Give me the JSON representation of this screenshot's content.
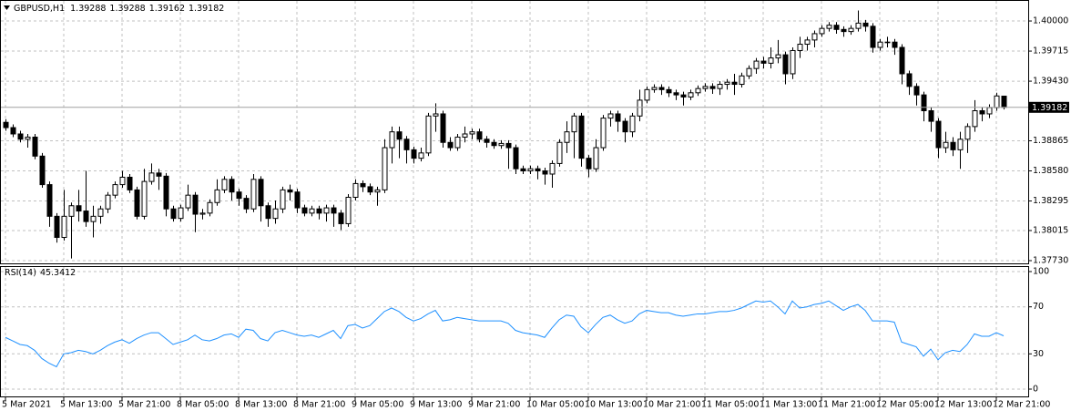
{
  "chart_data": [
    {
      "type": "candlestick",
      "title": "GBPUSD,H1",
      "bull_color": "#ffffff",
      "bear_color": "#000000",
      "edge_color": "#000000",
      "grid": true,
      "ylim": [
        1.37704,
        1.40173
      ],
      "yticks": [
        {
          "value": 1.4,
          "label": "1.40000"
        },
        1.39715,
        {
          "value": 1.3943,
          "label": "1.39430"
        },
        1.38865,
        {
          "value": 1.3858,
          "label": "1.38580"
        },
        1.38295,
        1.38015,
        {
          "value": 1.3773,
          "label": "1.37730"
        }
      ],
      "open": [
        1.3904,
        1.3899,
        1.3893,
        1.3888,
        1.389,
        1.3872,
        1.3845,
        1.3815,
        1.3795,
        1.3815,
        1.3825,
        1.382,
        1.381,
        1.3815,
        1.3822,
        1.3835,
        1.3845,
        1.3852,
        1.384,
        1.3815,
        1.3848,
        1.3856,
        1.3853,
        1.3822,
        1.3813,
        1.3823,
        1.3835,
        1.3817,
        1.3818,
        1.3828,
        1.384,
        1.385,
        1.3838,
        1.3832,
        1.3822,
        1.385,
        1.3825,
        1.3813,
        1.3822,
        1.384,
        1.3838,
        1.3823,
        1.3818,
        1.3822,
        1.3818,
        1.3823,
        1.3818,
        1.3808,
        1.3833,
        1.3846,
        1.3843,
        1.3838,
        1.384,
        1.388,
        1.3895,
        1.3888,
        1.3878,
        1.387,
        1.3875,
        1.391,
        1.3912,
        1.3885,
        1.388,
        1.389,
        1.3893,
        1.3895,
        1.3888,
        1.3885,
        1.3882,
        1.3884,
        1.388,
        1.386,
        1.3858,
        1.386,
        1.3858,
        1.3855,
        1.3865,
        1.3885,
        1.3895,
        1.391,
        1.387,
        1.386,
        1.388,
        1.3908,
        1.3912,
        1.3905,
        1.3895,
        1.391,
        1.3925,
        1.3935,
        1.3937,
        1.3935,
        1.3932,
        1.393,
        1.3928,
        1.3932,
        1.3936,
        1.3938,
        1.3936,
        1.394,
        1.3942,
        1.394,
        1.3948,
        1.3955,
        1.3962,
        1.396,
        1.3965,
        1.3968,
        1.395,
        1.3972,
        1.3978,
        1.3982,
        1.3988,
        1.3993,
        1.3996,
        1.3992,
        1.399,
        1.3993,
        1.3998,
        1.3995,
        1.3975,
        1.398,
        1.398,
        1.3975,
        1.395,
        1.3938,
        1.393,
        1.3915,
        1.3905,
        1.388,
        1.3885,
        1.3878,
        1.3888,
        1.39,
        1.3915,
        1.3912,
        1.3918,
        1.39288
      ],
      "high": [
        1.3907,
        1.3902,
        1.3896,
        1.3893,
        1.3893,
        1.3875,
        1.3848,
        1.3818,
        1.384,
        1.3828,
        1.384,
        1.3858,
        1.3825,
        1.3825,
        1.3838,
        1.3848,
        1.3858,
        1.3855,
        1.3843,
        1.386,
        1.3865,
        1.386,
        1.3856,
        1.3825,
        1.3826,
        1.3845,
        1.3838,
        1.3822,
        1.3831,
        1.385,
        1.3853,
        1.3853,
        1.3841,
        1.3835,
        1.3855,
        1.3853,
        1.3828,
        1.383,
        1.3843,
        1.3845,
        1.3841,
        1.3826,
        1.3825,
        1.3825,
        1.3826,
        1.3826,
        1.3821,
        1.3836,
        1.385,
        1.3849,
        1.3846,
        1.3843,
        1.3888,
        1.39,
        1.39,
        1.3891,
        1.3881,
        1.388,
        1.3913,
        1.3922,
        1.3915,
        1.389,
        1.3893,
        1.39,
        1.3898,
        1.3898,
        1.3891,
        1.3888,
        1.3887,
        1.3887,
        1.3883,
        1.3863,
        1.3863,
        1.3863,
        1.3861,
        1.3868,
        1.3888,
        1.3905,
        1.3913,
        1.3913,
        1.3873,
        1.3888,
        1.3911,
        1.3915,
        1.3915,
        1.3908,
        1.3913,
        1.3935,
        1.3938,
        1.394,
        1.394,
        1.3938,
        1.3935,
        1.3933,
        1.3935,
        1.3939,
        1.3941,
        1.3941,
        1.3943,
        1.3945,
        1.395,
        1.3951,
        1.3958,
        1.3965,
        1.3966,
        1.3975,
        1.3982,
        1.3971,
        1.3975,
        1.3985,
        1.3985,
        1.3991,
        1.3996,
        1.3999,
        1.3999,
        1.3995,
        1.3996,
        1.401,
        1.4001,
        1.3998,
        1.3983,
        1.3985,
        1.3983,
        1.3978,
        1.3953,
        1.3941,
        1.3933,
        1.3918,
        1.3908,
        1.3895,
        1.389,
        1.3895,
        1.3903,
        1.3925,
        1.3918,
        1.3921,
        1.3932,
        1.39288
      ],
      "low": [
        1.3896,
        1.389,
        1.3885,
        1.388,
        1.3869,
        1.3842,
        1.3805,
        1.379,
        1.3792,
        1.3775,
        1.381,
        1.3805,
        1.3795,
        1.3808,
        1.3818,
        1.3832,
        1.3842,
        1.3837,
        1.3812,
        1.3812,
        1.3845,
        1.384,
        1.3815,
        1.381,
        1.381,
        1.382,
        1.38,
        1.3812,
        1.3815,
        1.3825,
        1.3837,
        1.383,
        1.3825,
        1.3818,
        1.3819,
        1.381,
        1.3805,
        1.3808,
        1.3818,
        1.383,
        1.3818,
        1.3815,
        1.3815,
        1.3812,
        1.381,
        1.3805,
        1.3802,
        1.3805,
        1.383,
        1.3838,
        1.3835,
        1.3825,
        1.3837,
        1.3865,
        1.387,
        1.3865,
        1.3865,
        1.3867,
        1.3872,
        1.3895,
        1.388,
        1.3877,
        1.3877,
        1.3885,
        1.3888,
        1.3885,
        1.388,
        1.3879,
        1.3879,
        1.386,
        1.3855,
        1.3855,
        1.3855,
        1.385,
        1.3845,
        1.3842,
        1.3862,
        1.3875,
        1.387,
        1.3862,
        1.3852,
        1.3857,
        1.3877,
        1.39,
        1.3895,
        1.3885,
        1.389,
        1.3905,
        1.3922,
        1.3932,
        1.393,
        1.3928,
        1.3925,
        1.392,
        1.3925,
        1.3929,
        1.3933,
        1.3931,
        1.393,
        1.3935,
        1.393,
        1.3937,
        1.3945,
        1.395,
        1.3955,
        1.3955,
        1.396,
        1.394,
        1.3945,
        1.3965,
        1.3972,
        1.3975,
        1.3985,
        1.399,
        1.3988,
        1.3985,
        1.3987,
        1.399,
        1.399,
        1.397,
        1.3972,
        1.3975,
        1.3968,
        1.394,
        1.393,
        1.392,
        1.3905,
        1.3895,
        1.387,
        1.3875,
        1.3872,
        1.386,
        1.3875,
        1.3895,
        1.3905,
        1.3908,
        1.3915,
        1.39162
      ],
      "close": [
        1.3899,
        1.3893,
        1.3888,
        1.389,
        1.3872,
        1.3845,
        1.3815,
        1.3795,
        1.3815,
        1.3825,
        1.382,
        1.381,
        1.3815,
        1.3822,
        1.3835,
        1.3845,
        1.3852,
        1.384,
        1.3815,
        1.3848,
        1.3856,
        1.3853,
        1.3822,
        1.3813,
        1.3823,
        1.3835,
        1.3817,
        1.3818,
        1.3828,
        1.384,
        1.385,
        1.3838,
        1.3832,
        1.3822,
        1.385,
        1.3825,
        1.3813,
        1.3822,
        1.384,
        1.3838,
        1.3823,
        1.3818,
        1.3822,
        1.3818,
        1.3823,
        1.3818,
        1.3808,
        1.3833,
        1.3846,
        1.3843,
        1.3838,
        1.384,
        1.388,
        1.3895,
        1.3888,
        1.3878,
        1.387,
        1.3875,
        1.391,
        1.3912,
        1.3885,
        1.388,
        1.389,
        1.3893,
        1.3895,
        1.3888,
        1.3885,
        1.3882,
        1.3884,
        1.388,
        1.386,
        1.3858,
        1.386,
        1.3858,
        1.3855,
        1.3865,
        1.3885,
        1.3895,
        1.391,
        1.387,
        1.386,
        1.388,
        1.3908,
        1.3912,
        1.3905,
        1.3895,
        1.391,
        1.3925,
        1.3935,
        1.3937,
        1.3935,
        1.3932,
        1.393,
        1.3928,
        1.3932,
        1.3936,
        1.3938,
        1.3936,
        1.394,
        1.3942,
        1.394,
        1.3948,
        1.3955,
        1.3962,
        1.396,
        1.3965,
        1.3968,
        1.395,
        1.3972,
        1.3978,
        1.3982,
        1.3988,
        1.3993,
        1.3996,
        1.3992,
        1.399,
        1.3993,
        1.3998,
        1.3995,
        1.3975,
        1.398,
        1.398,
        1.3975,
        1.395,
        1.3938,
        1.393,
        1.3915,
        1.3905,
        1.388,
        1.3885,
        1.3878,
        1.3888,
        1.39,
        1.3915,
        1.3912,
        1.3918,
        1.3929,
        1.39182
      ]
    },
    {
      "type": "line",
      "title": "RSI(14)",
      "color": "#1e90ff",
      "grid": true,
      "ylim": [
        0,
        100
      ],
      "yticks": [
        100,
        70,
        30,
        0
      ],
      "xticks": [
        {
          "value": 0,
          "label": "5 Mar 2021"
        },
        {
          "value": 8,
          "label": "5 Mar 13:00"
        },
        {
          "value": 16,
          "label": "5 Mar 21:00"
        },
        {
          "value": 24,
          "label": "8 Mar 05:00"
        },
        {
          "value": 32,
          "label": "8 Mar 13:00"
        },
        {
          "value": 40,
          "label": "8 Mar 21:00"
        },
        {
          "value": 48,
          "label": "9 Mar 05:00"
        },
        {
          "value": 56,
          "label": "9 Mar 13:00"
        },
        {
          "value": 64,
          "label": "9 Mar 21:00"
        },
        {
          "value": 72,
          "label": "10 Mar 05:00"
        },
        {
          "value": 80,
          "label": "10 Mar 13:00"
        },
        {
          "value": 88,
          "label": "10 Mar 21:00"
        },
        {
          "value": 96,
          "label": "11 Mar 05:00"
        },
        {
          "value": 104,
          "label": "11 Mar 13:00"
        },
        {
          "value": 112,
          "label": "11 Mar 21:00"
        },
        {
          "value": 120,
          "label": "12 Mar 05:00"
        },
        {
          "value": 128,
          "label": "12 Mar 13:00"
        },
        {
          "value": 136,
          "label": "12 Mar 21:00"
        }
      ],
      "values": [
        44,
        41,
        38,
        37,
        33,
        26,
        22,
        19,
        30,
        31,
        33,
        32,
        30,
        33,
        37,
        40,
        42,
        39,
        43,
        46,
        48,
        48,
        43,
        38,
        40,
        42,
        46,
        42,
        41,
        43,
        46,
        47,
        44,
        51,
        50,
        43,
        41,
        48,
        50,
        48,
        46,
        45,
        46,
        44,
        47,
        50,
        43,
        54,
        55,
        52,
        54,
        60,
        66,
        69,
        66,
        61,
        58,
        60,
        64,
        67,
        58,
        59,
        61,
        60,
        59,
        58,
        58,
        58,
        58,
        56,
        50,
        48,
        47,
        46,
        44,
        52,
        59,
        63,
        62,
        53,
        48,
        55,
        61,
        63,
        59,
        56,
        58,
        64,
        67,
        66,
        65,
        65,
        63,
        62,
        63,
        64,
        64,
        65,
        66,
        66,
        67,
        69,
        72,
        75,
        74,
        75,
        70,
        64,
        75,
        69,
        70,
        72,
        73,
        75,
        71,
        67,
        70,
        72,
        67,
        58,
        58,
        58,
        57,
        40,
        38,
        36,
        28,
        34,
        25,
        31,
        33,
        32,
        38,
        47,
        45,
        45,
        48,
        45.3412
      ]
    }
  ]
}
